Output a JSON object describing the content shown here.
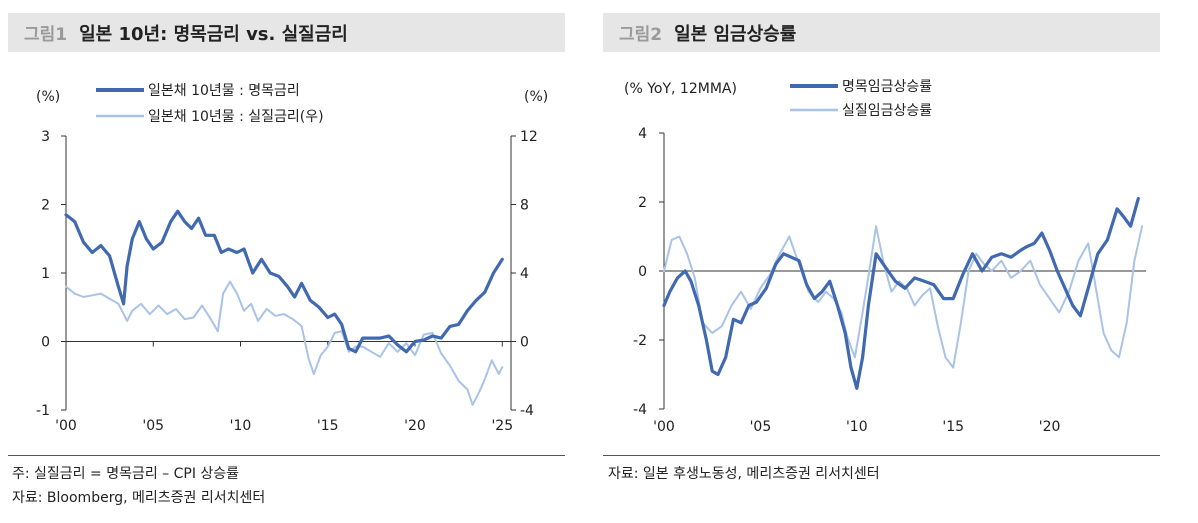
{
  "figures": [
    {
      "label": "그림1",
      "title": "일본 10년: 명목금리 vs. 실질금리",
      "note": "주: 실질금리 = 명목금리 – CPI 상승률",
      "source": "자료: Bloomberg, 메리츠증권 리서치센터"
    },
    {
      "label": "그림2",
      "title": "일본 임금상승률",
      "source": "자료: 일본 후생노동성, 메리츠증권 리서치센터"
    }
  ],
  "chart_data": [
    {
      "type": "line",
      "left_unit": "(%)",
      "right_unit": "(%)",
      "xlim": [
        2000,
        2025.5
      ],
      "ylim_left": [
        -1,
        3
      ],
      "ylim_right": [
        -4,
        12
      ],
      "x_ticks": [
        2000,
        2005,
        2010,
        2015,
        2020,
        2025
      ],
      "x_tick_labels": [
        "'00",
        "'05",
        "'10",
        "'15",
        "'20",
        "'25"
      ],
      "y_ticks_left": [
        -1,
        0,
        1,
        2,
        3
      ],
      "y_ticks_right": [
        -4,
        0,
        4,
        8,
        12
      ],
      "legend_position": "top-center",
      "colors": {
        "nominal": "#4169b0",
        "real": "#a9c3e6",
        "axis": "#333333"
      },
      "series": [
        {
          "name": "일본채 10년물 : 명목금리",
          "axis": "left",
          "color": "#4169b0",
          "x": [
            2000,
            2000.5,
            2001,
            2001.5,
            2002,
            2002.5,
            2003,
            2003.3,
            2003.5,
            2003.8,
            2004.2,
            2004.6,
            2005,
            2005.5,
            2006,
            2006.4,
            2006.8,
            2007.2,
            2007.6,
            2008,
            2008.5,
            2008.9,
            2009.3,
            2009.8,
            2010.2,
            2010.7,
            2011.2,
            2011.7,
            2012.2,
            2012.7,
            2013.1,
            2013.5,
            2014,
            2014.5,
            2015,
            2015.4,
            2015.8,
            2016.2,
            2016.6,
            2017,
            2017.5,
            2018,
            2018.5,
            2019,
            2019.5,
            2020,
            2020.5,
            2021,
            2021.5,
            2022,
            2022.5,
            2023,
            2023.5,
            2024,
            2024.5,
            2025
          ],
          "y": [
            1.85,
            1.75,
            1.45,
            1.3,
            1.4,
            1.25,
            0.8,
            0.55,
            1.1,
            1.5,
            1.75,
            1.5,
            1.35,
            1.45,
            1.75,
            1.9,
            1.75,
            1.65,
            1.8,
            1.55,
            1.55,
            1.3,
            1.35,
            1.3,
            1.35,
            1.0,
            1.2,
            1.0,
            0.95,
            0.8,
            0.65,
            0.85,
            0.6,
            0.5,
            0.35,
            0.4,
            0.25,
            -0.1,
            -0.15,
            0.05,
            0.05,
            0.05,
            0.08,
            -0.05,
            -0.15,
            0.0,
            0.02,
            0.08,
            0.05,
            0.22,
            0.25,
            0.45,
            0.6,
            0.72,
            1.0,
            1.2
          ]
        },
        {
          "name": "일본채 10년물 : 실질금리(우)",
          "axis": "right",
          "color": "#a9c3e6",
          "x": [
            2000,
            2000.5,
            2001,
            2001.5,
            2002,
            2002.5,
            2003,
            2003.5,
            2003.8,
            2004.3,
            2004.8,
            2005.3,
            2005.8,
            2006.3,
            2006.8,
            2007.3,
            2007.8,
            2008.3,
            2008.7,
            2009,
            2009.4,
            2009.8,
            2010.2,
            2010.6,
            2011,
            2011.5,
            2012,
            2012.5,
            2013,
            2013.5,
            2013.9,
            2014.2,
            2014.6,
            2015,
            2015.4,
            2015.8,
            2016.2,
            2016.6,
            2017,
            2017.5,
            2018,
            2018.5,
            2019,
            2019.5,
            2020,
            2020.5,
            2021,
            2021.5,
            2022,
            2022.5,
            2023,
            2023.3,
            2023.7,
            2024,
            2024.4,
            2024.8,
            2025
          ],
          "y": [
            3.2,
            2.8,
            2.6,
            2.7,
            2.8,
            2.5,
            2.2,
            1.2,
            1.8,
            2.2,
            1.6,
            2.1,
            1.6,
            1.9,
            1.3,
            1.4,
            2.1,
            1.3,
            0.6,
            2.8,
            3.5,
            2.8,
            1.8,
            2.2,
            1.2,
            1.9,
            1.5,
            1.6,
            1.3,
            0.9,
            -1.0,
            -1.9,
            -0.8,
            -0.3,
            0.5,
            0.6,
            -0.6,
            -0.3,
            -0.3,
            -0.6,
            -0.9,
            -0.1,
            -0.6,
            -0.1,
            -0.8,
            0.4,
            0.5,
            -0.7,
            -1.4,
            -2.3,
            -2.8,
            -3.7,
            -2.9,
            -2.2,
            -1.1,
            -1.9,
            -1.5
          ]
        }
      ]
    },
    {
      "type": "line",
      "unit_label": "(% YoY, 12MMA)",
      "xlim": [
        2000,
        2025
      ],
      "ylim": [
        -4,
        4
      ],
      "x_ticks": [
        2000,
        2005,
        2010,
        2015,
        2020
      ],
      "x_tick_labels": [
        "'00",
        "'05",
        "'10",
        "'15",
        "'20"
      ],
      "y_ticks": [
        -4,
        -2,
        0,
        2,
        4
      ],
      "legend_position": "top-center",
      "colors": {
        "nominal": "#4169b0",
        "real": "#a9c3e6",
        "axis": "#333333"
      },
      "series": [
        {
          "name": "명목임금상승률",
          "color": "#4169b0",
          "x": [
            2000,
            2000.3,
            2000.7,
            2001.1,
            2001.4,
            2001.8,
            2002.2,
            2002.5,
            2002.8,
            2003.2,
            2003.6,
            2004,
            2004.4,
            2004.8,
            2005.3,
            2005.8,
            2006.2,
            2006.6,
            2007,
            2007.4,
            2007.8,
            2008.2,
            2008.6,
            2009,
            2009.4,
            2009.7,
            2010,
            2010.3,
            2010.6,
            2011,
            2011.5,
            2012,
            2012.5,
            2013,
            2013.5,
            2014,
            2014.5,
            2015,
            2015.5,
            2016,
            2016.5,
            2017,
            2017.5,
            2018,
            2018.5,
            2018.8,
            2019.2,
            2019.6,
            2020,
            2020.4,
            2020.8,
            2021.2,
            2021.6,
            2022,
            2022.5,
            2023,
            2023.5,
            2023.8,
            2024.2,
            2024.6
          ],
          "y": [
            -1.0,
            -0.6,
            -0.2,
            0.0,
            -0.3,
            -1.0,
            -2.0,
            -2.9,
            -3.0,
            -2.5,
            -1.4,
            -1.5,
            -1.0,
            -0.9,
            -0.5,
            0.2,
            0.5,
            0.4,
            0.3,
            -0.4,
            -0.8,
            -0.6,
            -0.3,
            -1.0,
            -1.8,
            -2.8,
            -3.4,
            -2.5,
            -1.0,
            0.5,
            0.1,
            -0.3,
            -0.5,
            -0.2,
            -0.3,
            -0.4,
            -0.8,
            -0.8,
            -0.1,
            0.5,
            0.0,
            0.4,
            0.5,
            0.4,
            0.6,
            0.7,
            0.8,
            1.1,
            0.6,
            0.0,
            -0.5,
            -1.0,
            -1.3,
            -0.5,
            0.5,
            0.9,
            1.8,
            1.6,
            1.3,
            2.1
          ]
        },
        {
          "name": "실질임금상승률",
          "color": "#a9c3e6",
          "x": [
            2000,
            2000.4,
            2000.8,
            2001.2,
            2001.6,
            2002,
            2002.5,
            2003,
            2003.5,
            2004,
            2004.5,
            2005,
            2005.5,
            2006,
            2006.5,
            2007,
            2007.5,
            2008,
            2008.4,
            2008.8,
            2009.2,
            2009.5,
            2009.9,
            2010.3,
            2010.7,
            2011,
            2011.4,
            2011.8,
            2012.2,
            2012.6,
            2013,
            2013.4,
            2013.8,
            2014.2,
            2014.6,
            2015,
            2015.4,
            2015.8,
            2016.2,
            2016.6,
            2017,
            2017.5,
            2018,
            2018.5,
            2019,
            2019.5,
            2020,
            2020.5,
            2021,
            2021.5,
            2022,
            2022.4,
            2022.8,
            2023.2,
            2023.6,
            2024,
            2024.4,
            2024.8
          ],
          "y": [
            0.0,
            0.9,
            1.0,
            0.5,
            -0.2,
            -1.5,
            -1.8,
            -1.6,
            -1.0,
            -0.6,
            -1.1,
            -0.5,
            -0.1,
            0.5,
            1.0,
            0.2,
            -0.6,
            -0.9,
            -0.6,
            -0.8,
            -1.2,
            -1.9,
            -2.5,
            -1.2,
            0.2,
            1.3,
            0.2,
            -0.6,
            -0.3,
            -0.5,
            -1.0,
            -0.7,
            -0.5,
            -1.6,
            -2.5,
            -2.8,
            -1.5,
            0.0,
            0.5,
            0.2,
            0.0,
            0.3,
            -0.2,
            0.0,
            0.3,
            -0.4,
            -0.8,
            -1.2,
            -0.6,
            0.3,
            0.8,
            -0.5,
            -1.8,
            -2.3,
            -2.5,
            -1.5,
            0.3,
            1.3
          ]
        }
      ]
    }
  ]
}
